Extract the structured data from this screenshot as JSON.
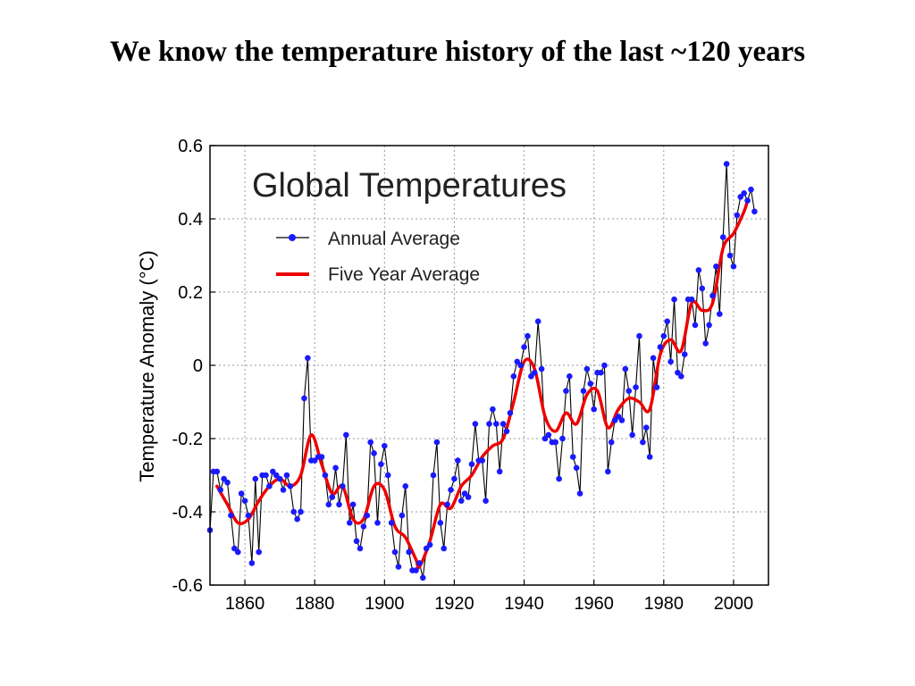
{
  "slide": {
    "title": "We know the temperature history of  the last ~120 years"
  },
  "colors": {
    "annual_line": "#000000",
    "annual_marker": "#1a1aff",
    "five_year_line": "#ee0000",
    "grid": "#9a9a9a"
  },
  "chart_data": {
    "type": "line",
    "title": "Global Temperatures",
    "xlabel": "",
    "ylabel": "Temperature Anomaly (°C)",
    "xlim": [
      1850,
      2010
    ],
    "ylim": [
      -0.6,
      0.6
    ],
    "xticks": [
      1860,
      1880,
      1900,
      1920,
      1940,
      1960,
      1980,
      2000
    ],
    "yticks": [
      0.6,
      0.4,
      0.2,
      0,
      -0.2,
      -0.4,
      -0.6
    ],
    "ytick_labels": [
      "0.6",
      "0.4",
      "0.2",
      "0",
      "-0.2",
      "-0.4",
      "-0.6"
    ],
    "grid": true,
    "legend_position": "top-left",
    "series": [
      {
        "name": "Annual Average",
        "style": "line-with-markers",
        "x_start": 1850,
        "values": [
          -0.45,
          -0.29,
          -0.29,
          -0.34,
          -0.31,
          -0.32,
          -0.41,
          -0.5,
          -0.51,
          -0.35,
          -0.37,
          -0.41,
          -0.54,
          -0.31,
          -0.51,
          -0.3,
          -0.3,
          -0.33,
          -0.29,
          -0.3,
          -0.31,
          -0.34,
          -0.3,
          -0.33,
          -0.4,
          -0.42,
          -0.4,
          -0.09,
          0.02,
          -0.26,
          -0.26,
          -0.25,
          -0.25,
          -0.3,
          -0.38,
          -0.36,
          -0.28,
          -0.38,
          -0.33,
          -0.19,
          -0.43,
          -0.38,
          -0.48,
          -0.5,
          -0.44,
          -0.41,
          -0.21,
          -0.24,
          -0.43,
          -0.27,
          -0.22,
          -0.3,
          -0.43,
          -0.51,
          -0.55,
          -0.41,
          -0.33,
          -0.51,
          -0.56,
          -0.56,
          -0.54,
          -0.58,
          -0.5,
          -0.49,
          -0.3,
          -0.21,
          -0.43,
          -0.5,
          -0.38,
          -0.34,
          -0.31,
          -0.26,
          -0.37,
          -0.35,
          -0.36,
          -0.27,
          -0.16,
          -0.26,
          -0.26,
          -0.37,
          -0.16,
          -0.12,
          -0.16,
          -0.29,
          -0.16,
          -0.18,
          -0.13,
          -0.03,
          0.01,
          0.0,
          0.05,
          0.08,
          -0.03,
          -0.02,
          0.12,
          -0.01,
          -0.2,
          -0.19,
          -0.21,
          -0.21,
          -0.31,
          -0.2,
          -0.07,
          -0.03,
          -0.25,
          -0.28,
          -0.35,
          -0.07,
          -0.01,
          -0.05,
          -0.12,
          -0.02,
          -0.02,
          0.0,
          -0.29,
          -0.21,
          -0.15,
          -0.14,
          -0.15,
          -0.01,
          -0.07,
          -0.19,
          -0.06,
          0.08,
          -0.21,
          -0.17,
          -0.25,
          0.02,
          -0.06,
          0.05,
          0.08,
          0.12,
          0.01,
          0.18,
          -0.02,
          -0.03,
          0.03,
          0.18,
          0.18,
          0.11,
          0.26,
          0.21,
          0.06,
          0.11,
          0.19,
          0.27,
          0.14,
          0.35,
          0.55,
          0.3,
          0.27,
          0.41,
          0.46,
          0.47,
          0.45,
          0.48,
          0.42
        ]
      },
      {
        "name": "Five Year Average",
        "style": "smooth-line",
        "x": [
          1852,
          1855,
          1858,
          1861,
          1864,
          1867,
          1870,
          1873,
          1876,
          1879,
          1882,
          1885,
          1888,
          1891,
          1894,
          1897,
          1900,
          1903,
          1906,
          1909,
          1910,
          1913,
          1916,
          1919,
          1922,
          1925,
          1928,
          1931,
          1934,
          1937,
          1940,
          1943,
          1946,
          1949,
          1952,
          1955,
          1958,
          1961,
          1964,
          1967,
          1970,
          1973,
          1976,
          1979,
          1982,
          1985,
          1988,
          1991,
          1994,
          1997,
          2000,
          2003,
          2004
        ],
        "values": [
          -0.33,
          -0.38,
          -0.43,
          -0.42,
          -0.37,
          -0.33,
          -0.31,
          -0.33,
          -0.3,
          -0.19,
          -0.27,
          -0.35,
          -0.33,
          -0.42,
          -0.42,
          -0.33,
          -0.34,
          -0.44,
          -0.47,
          -0.53,
          -0.55,
          -0.48,
          -0.38,
          -0.39,
          -0.33,
          -0.3,
          -0.25,
          -0.22,
          -0.2,
          -0.1,
          0.01,
          -0.01,
          -0.14,
          -0.18,
          -0.13,
          -0.16,
          -0.08,
          -0.07,
          -0.17,
          -0.12,
          -0.09,
          -0.1,
          -0.12,
          0.03,
          0.07,
          0.04,
          0.17,
          0.15,
          0.17,
          0.32,
          0.36,
          0.42,
          0.45
        ]
      }
    ]
  }
}
